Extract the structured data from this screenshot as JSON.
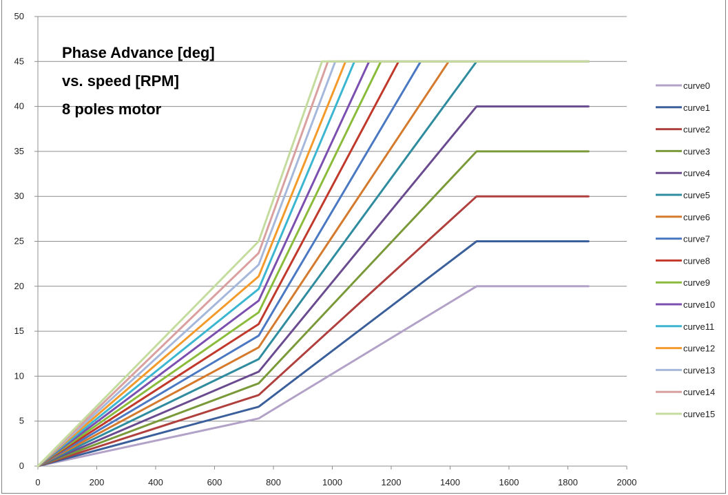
{
  "chart_data": {
    "type": "line",
    "title_lines": [
      "Phase Advance [deg]",
      "vs. speed [RPM]",
      "8 poles motor"
    ],
    "xlabel": "",
    "ylabel": "",
    "xlim": [
      0,
      2000
    ],
    "ylim": [
      0,
      50
    ],
    "x_ticks": [
      "0",
      "200",
      "400",
      "600",
      "800",
      "1000",
      "1200",
      "1400",
      "1600",
      "1800",
      "2000"
    ],
    "y_ticks": [
      "0",
      "5",
      "10",
      "15",
      "20",
      "25",
      "30",
      "35",
      "40",
      "45",
      "50"
    ],
    "grid": "horizontal",
    "legend_position": "right",
    "series": [
      {
        "name": "curve0",
        "color": "#b3a2c7",
        "points": [
          [
            0,
            0
          ],
          [
            750,
            5.3
          ],
          [
            1490,
            20
          ],
          [
            1870,
            20
          ]
        ]
      },
      {
        "name": "curve1",
        "color": "#3a5f9a",
        "points": [
          [
            0,
            0
          ],
          [
            750,
            6.6
          ],
          [
            1490,
            25
          ],
          [
            1870,
            25
          ]
        ]
      },
      {
        "name": "curve2",
        "color": "#b0403d",
        "points": [
          [
            0,
            0
          ],
          [
            750,
            7.9
          ],
          [
            1490,
            30
          ],
          [
            1870,
            30
          ]
        ]
      },
      {
        "name": "curve3",
        "color": "#7a9a3a",
        "points": [
          [
            0,
            0
          ],
          [
            750,
            9.2
          ],
          [
            1490,
            35
          ],
          [
            1870,
            35
          ]
        ]
      },
      {
        "name": "curve4",
        "color": "#6a4b8f",
        "points": [
          [
            0,
            0
          ],
          [
            750,
            10.5
          ],
          [
            1490,
            40
          ],
          [
            1870,
            40
          ]
        ]
      },
      {
        "name": "curve5",
        "color": "#2e8c9e",
        "points": [
          [
            0,
            0
          ],
          [
            750,
            11.9
          ],
          [
            1490,
            45
          ],
          [
            1870,
            45
          ]
        ]
      },
      {
        "name": "curve6",
        "color": "#d57a2d",
        "points": [
          [
            0,
            0
          ],
          [
            750,
            13.2
          ],
          [
            1395,
            45
          ],
          [
            1870,
            45
          ]
        ]
      },
      {
        "name": "curve7",
        "color": "#4a78c2",
        "points": [
          [
            0,
            0
          ],
          [
            750,
            14.5
          ],
          [
            1300,
            45
          ],
          [
            1870,
            45
          ]
        ]
      },
      {
        "name": "curve8",
        "color": "#c0392b",
        "points": [
          [
            0,
            0
          ],
          [
            750,
            15.8
          ],
          [
            1225,
            45
          ],
          [
            1870,
            45
          ]
        ]
      },
      {
        "name": "curve9",
        "color": "#8bbb3a",
        "points": [
          [
            0,
            0
          ],
          [
            750,
            17.1
          ],
          [
            1165,
            45
          ],
          [
            1870,
            45
          ]
        ]
      },
      {
        "name": "curve10",
        "color": "#7b4fb0",
        "points": [
          [
            0,
            0
          ],
          [
            750,
            18.4
          ],
          [
            1125,
            45
          ],
          [
            1870,
            45
          ]
        ]
      },
      {
        "name": "curve11",
        "color": "#3cb6d0",
        "points": [
          [
            0,
            0
          ],
          [
            750,
            19.7
          ],
          [
            1075,
            45
          ],
          [
            1870,
            45
          ]
        ]
      },
      {
        "name": "curve12",
        "color": "#f39a2a",
        "points": [
          [
            0,
            0
          ],
          [
            750,
            21.1
          ],
          [
            1045,
            45
          ],
          [
            1870,
            45
          ]
        ]
      },
      {
        "name": "curve13",
        "color": "#a5b8dc",
        "points": [
          [
            0,
            0
          ],
          [
            750,
            22.4
          ],
          [
            1010,
            45
          ],
          [
            1870,
            45
          ]
        ]
      },
      {
        "name": "curve14",
        "color": "#daa0a0",
        "points": [
          [
            0,
            0
          ],
          [
            750,
            23.7
          ],
          [
            985,
            45
          ],
          [
            1870,
            45
          ]
        ]
      },
      {
        "name": "curve15",
        "color": "#c5dc9f",
        "points": [
          [
            0,
            0
          ],
          [
            750,
            25
          ],
          [
            965,
            45
          ],
          [
            1870,
            45
          ]
        ]
      }
    ]
  }
}
